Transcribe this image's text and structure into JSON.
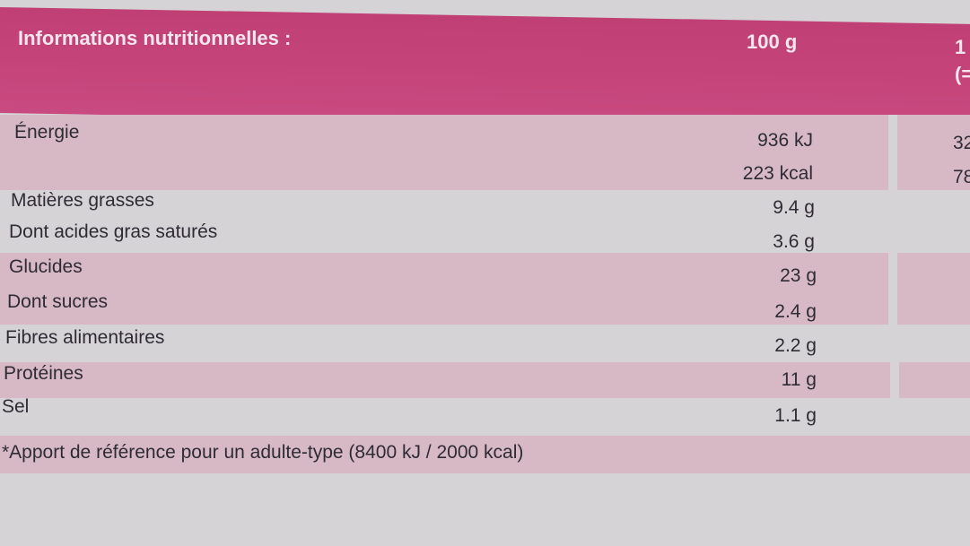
{
  "header": {
    "title": "Informations nutritionnelles :",
    "col_100g": "100 g",
    "col_portion_line1": "1",
    "col_portion_line2": "(="
  },
  "rows": [
    {
      "label": "Énergie",
      "value": "936 kJ",
      "portion": "32"
    },
    {
      "label": "",
      "value": "223 kcal",
      "portion": "78"
    },
    {
      "label": "Matières grasses",
      "value": "9.4 g"
    },
    {
      "label": "Dont acides gras saturés",
      "value": "3.6 g"
    },
    {
      "label": "Glucides",
      "value": "23 g"
    },
    {
      "label": "Dont sucres",
      "value": "2.4 g"
    },
    {
      "label": "Fibres alimentaires",
      "value": "2.2 g"
    },
    {
      "label": "Protéines",
      "value": "11 g"
    },
    {
      "label": "Sel",
      "value": "1.1 g"
    }
  ],
  "footnote": "*Apport de référence pour un adulte-type (8400 kJ / 2000 kcal)",
  "colors": {
    "header": "#c3427a",
    "band": "#d7b9c6",
    "background": "#d6d3d6"
  }
}
